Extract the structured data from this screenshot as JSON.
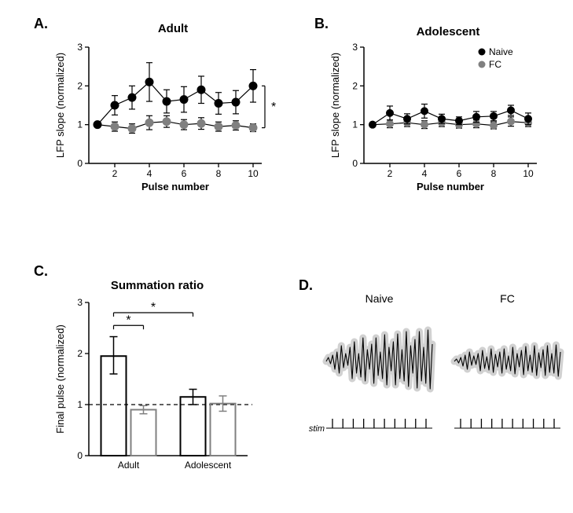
{
  "panelA": {
    "label": "A.",
    "title": "Adult",
    "ylabel": "LFP slope (normalized)",
    "xlabel": "Pulse number",
    "ylim": [
      0,
      3
    ],
    "yticks": [
      0,
      1,
      2,
      3
    ],
    "xlim": [
      0.5,
      10.5
    ],
    "xticks": [
      2,
      4,
      6,
      8,
      10
    ],
    "significance": "*",
    "series": {
      "naive": {
        "label": "Naive",
        "color": "#000000",
        "marker_size": 5,
        "x": [
          1,
          2,
          3,
          4,
          5,
          6,
          7,
          8,
          9,
          10
        ],
        "y": [
          1.0,
          1.5,
          1.7,
          2.1,
          1.6,
          1.65,
          1.9,
          1.55,
          1.58,
          2.0
        ],
        "err": [
          0.0,
          0.25,
          0.3,
          0.5,
          0.3,
          0.33,
          0.35,
          0.28,
          0.3,
          0.42
        ]
      },
      "fc": {
        "label": "FC",
        "color": "#808080",
        "marker_size": 5,
        "x": [
          1,
          2,
          3,
          4,
          5,
          6,
          7,
          8,
          9,
          10
        ],
        "y": [
          1.0,
          0.95,
          0.9,
          1.05,
          1.08,
          1.0,
          1.03,
          0.95,
          0.98,
          0.92
        ],
        "err": [
          0.0,
          0.12,
          0.12,
          0.18,
          0.15,
          0.13,
          0.15,
          0.12,
          0.12,
          0.1
        ]
      }
    }
  },
  "panelB": {
    "label": "B.",
    "title": "Adolescent",
    "ylabel": "LFP slope (normalized)",
    "xlabel": "Pulse number",
    "ylim": [
      0,
      3
    ],
    "yticks": [
      0,
      1,
      2,
      3
    ],
    "xlim": [
      0.5,
      10.5
    ],
    "xticks": [
      2,
      4,
      6,
      8,
      10
    ],
    "legend": {
      "naive": "Naive",
      "fc": "FC"
    },
    "series": {
      "naive": {
        "color": "#000000",
        "marker_size": 4.5,
        "x": [
          1,
          2,
          3,
          4,
          5,
          6,
          7,
          8,
          9,
          10
        ],
        "y": [
          1.0,
          1.3,
          1.15,
          1.35,
          1.15,
          1.1,
          1.2,
          1.22,
          1.37,
          1.15
        ],
        "err": [
          0.0,
          0.18,
          0.13,
          0.18,
          0.12,
          0.1,
          0.14,
          0.12,
          0.13,
          0.15
        ]
      },
      "fc": {
        "color": "#808080",
        "marker_size": 4.5,
        "x": [
          1,
          2,
          3,
          4,
          5,
          6,
          7,
          8,
          9,
          10
        ],
        "y": [
          1.0,
          1.02,
          1.05,
          1.0,
          1.05,
          1.0,
          1.02,
          0.98,
          1.08,
          1.05
        ],
        "err": [
          0.0,
          0.1,
          0.1,
          0.1,
          0.1,
          0.09,
          0.1,
          0.09,
          0.12,
          0.1
        ]
      }
    }
  },
  "panelC": {
    "label": "C.",
    "title": "Summation ratio",
    "ylabel": "Final pulse (normalized)",
    "ylim": [
      0,
      3
    ],
    "yticks": [
      0,
      1,
      2,
      3
    ],
    "groups": [
      "Adult",
      "Adolescent"
    ],
    "ref_line": 1.0,
    "bars": [
      {
        "group": 0,
        "sub": 0,
        "value": 1.95,
        "err_low": 0.35,
        "err_high": 0.38,
        "color": "#000000"
      },
      {
        "group": 0,
        "sub": 1,
        "value": 0.9,
        "err_low": 0.08,
        "err_high": 0.08,
        "color": "#808080"
      },
      {
        "group": 1,
        "sub": 0,
        "value": 1.15,
        "err_low": 0.15,
        "err_high": 0.15,
        "color": "#000000"
      },
      {
        "group": 1,
        "sub": 1,
        "value": 1.02,
        "err_low": 0.15,
        "err_high": 0.15,
        "color": "#808080"
      }
    ],
    "sig": [
      {
        "from": 0,
        "to": 1,
        "label": "*",
        "y": 2.55
      },
      {
        "from": 0,
        "to": 2,
        "label": "*",
        "y": 2.8
      }
    ]
  },
  "panelD": {
    "label": "D.",
    "titles": [
      "Naive",
      "FC"
    ],
    "stim_label": "stim",
    "stim_count": 10,
    "trace_color": "#000000",
    "trace_shadow": "#cccccc",
    "naive_trace": [
      0,
      5,
      -3,
      8,
      -10,
      12,
      -15,
      20,
      -8,
      10,
      -5,
      18,
      -22,
      25,
      -15,
      10,
      -20,
      30,
      -25,
      15,
      -10,
      22,
      -28,
      30,
      -18,
      12,
      -22,
      34,
      -30,
      18,
      -12,
      25,
      -30,
      35,
      -22,
      15,
      -25,
      38,
      -32,
      20,
      -15,
      28,
      -34,
      38,
      -25,
      18,
      -28,
      40,
      -35,
      22
    ],
    "fc_trace": [
      0,
      3,
      -2,
      5,
      -6,
      8,
      -10,
      12,
      -5,
      7,
      -4,
      10,
      -12,
      14,
      -9,
      6,
      -11,
      16,
      -14,
      9,
      -7,
      12,
      -15,
      16,
      -10,
      7,
      -12,
      18,
      -16,
      10,
      -7,
      14,
      -17,
      19,
      -12,
      8,
      -14,
      20,
      -18,
      11,
      -8,
      15,
      -18,
      20,
      -14,
      10,
      -15,
      21,
      -19,
      12
    ]
  },
  "colors": {
    "axis": "#000000",
    "background": "#ffffff"
  }
}
